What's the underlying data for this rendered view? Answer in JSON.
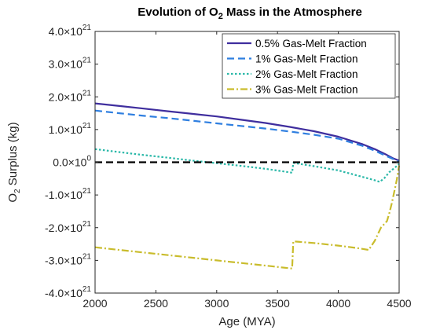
{
  "chart_data": {
    "type": "line",
    "title": "Evolution of O2 Mass in the Atmosphere",
    "title_parts": {
      "pre": "Evolution of O",
      "sub": "2",
      "post": " Mass in the Atmosphere"
    },
    "xlabel": "Age (MYA)",
    "ylabel": "O2 Surplus (kg)",
    "ylabel_parts": {
      "pre": "O",
      "sub": "2",
      "post": " Surplus (kg)"
    },
    "xlim": [
      2000,
      4500
    ],
    "ylim": [
      -4e+21,
      4e+21
    ],
    "x_ticks": [
      2000,
      2500,
      3000,
      3500,
      4000,
      4500
    ],
    "x_tick_labels": [
      "2000",
      "2500",
      "3000",
      "3500",
      "4000",
      "4500"
    ],
    "y_ticks": [
      -4e+21,
      -3e+21,
      -2e+21,
      -1e+21,
      0,
      1e+21,
      2e+21,
      3e+21,
      4e+21
    ],
    "y_tick_labels": [
      {
        "mantissa": "-4.0",
        "exp": "21"
      },
      {
        "mantissa": "-3.0",
        "exp": "21"
      },
      {
        "mantissa": "-2.0",
        "exp": "21"
      },
      {
        "mantissa": "-1.0",
        "exp": "21"
      },
      {
        "mantissa": "0.0",
        "exp": "0"
      },
      {
        "mantissa": "1.0",
        "exp": "21"
      },
      {
        "mantissa": "2.0",
        "exp": "21"
      },
      {
        "mantissa": "3.0",
        "exp": "21"
      },
      {
        "mantissa": "4.0",
        "exp": "21"
      }
    ],
    "grid": false,
    "legend_position": "top-right",
    "series": [
      {
        "name": "0.5% Gas-Melt Fraction",
        "color": "#3f2e9e",
        "style": "solid",
        "x": [
          2000,
          2200,
          2400,
          2600,
          2800,
          3000,
          3200,
          3400,
          3600,
          3800,
          4000,
          4200,
          4300,
          4400,
          4450,
          4500
        ],
        "y": [
          1.8e+21,
          1.72e+21,
          1.64e+21,
          1.56e+21,
          1.48e+21,
          1.4e+21,
          1.3e+21,
          1.2e+21,
          1.08e+21,
          9.5e+20,
          7.8e+20,
          5.5e+20,
          4e+20,
          2.2e+20,
          1.2e+20,
          5e+19
        ]
      },
      {
        "name": "1% Gas-Melt Fraction",
        "color": "#2f7fe0",
        "style": "dashed",
        "x": [
          2000,
          2200,
          2400,
          2600,
          2800,
          3000,
          3200,
          3400,
          3600,
          3800,
          4000,
          4200,
          4300,
          4400,
          4450,
          4500
        ],
        "y": [
          1.58e+21,
          1.5e+21,
          1.42e+21,
          1.35e+21,
          1.27e+21,
          1.19e+21,
          1.11e+21,
          1.03e+21,
          9.4e+20,
          8.4e+20,
          7.2e+20,
          5e+20,
          3.5e+20,
          1.8e+20,
          1e+20,
          2e+19
        ]
      },
      {
        "name": "2% Gas-Melt Fraction",
        "color": "#2ab8a8",
        "style": "dotted",
        "x": [
          2000,
          2200,
          2400,
          2600,
          2800,
          3000,
          3200,
          3400,
          3620,
          3630,
          3800,
          4000,
          4200,
          4300,
          4340,
          4380,
          4420,
          4460,
          4500
        ],
        "y": [
          4e+20,
          3.1e+20,
          2.2e+20,
          1.4e+20,
          5e+19,
          -3e+19,
          -1.1e+20,
          -2e+20,
          -3.2e+20,
          -2e+19,
          -1.2e+20,
          -2.5e+20,
          -4.5e+20,
          -5.5e+20,
          -6e+20,
          -4.8e+20,
          -3e+20,
          -1.8e+20,
          -5e+19
        ]
      },
      {
        "name": "3% Gas-Melt Fraction",
        "color": "#c9bc2c",
        "style": "dashdot",
        "x": [
          2000,
          2200,
          2400,
          2600,
          2800,
          3000,
          3200,
          3400,
          3620,
          3630,
          3800,
          4000,
          4150,
          4200,
          4250,
          4300,
          4350,
          4400,
          4420,
          4440,
          4460,
          4480,
          4500
        ],
        "y": [
          -2.6e+21,
          -2.68e+21,
          -2.76e+21,
          -2.84e+21,
          -2.92e+21,
          -3e+21,
          -3.08e+21,
          -3.16e+21,
          -3.25e+21,
          -2.42e+21,
          -2.47e+21,
          -2.55e+21,
          -2.62e+21,
          -2.65e+21,
          -2.68e+21,
          -2.4e+21,
          -2e+21,
          -1.8e+21,
          -1.55e+21,
          -1.25e+21,
          -9e+20,
          -5.5e+20,
          -1e+20
        ]
      }
    ],
    "reference_line": {
      "y": 0,
      "color": "#000000",
      "style": "dashed"
    }
  }
}
